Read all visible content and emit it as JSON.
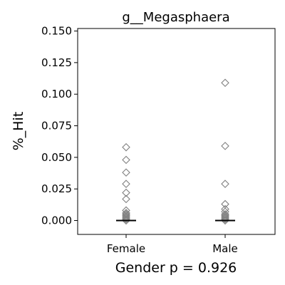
{
  "chart_data": {
    "type": "scatter",
    "title": "g__Megasphaera",
    "xlabel": "Gender p = 0.926",
    "ylabel": "%_Hit",
    "categories": [
      "Female",
      "Male"
    ],
    "ylim": [
      -0.011,
      0.152
    ],
    "yticks": [
      "0.000",
      "0.025",
      "0.050",
      "0.075",
      "0.100",
      "0.125",
      "0.150"
    ],
    "grid": false,
    "marker": "diamond",
    "marker_color": "#808080",
    "median_color": "#000000",
    "series": [
      {
        "category": "Female",
        "values": [
          0.058,
          0.048,
          0.038,
          0.029,
          0.022,
          0.017,
          0.008,
          0.006,
          0.005,
          0.004,
          0.003,
          0.002,
          0.001,
          0.0
        ],
        "median": 0.0
      },
      {
        "category": "Male",
        "values": [
          0.109,
          0.059,
          0.029,
          0.013,
          0.009,
          0.007,
          0.005,
          0.004,
          0.003,
          0.002,
          0.001,
          0.0
        ],
        "median": 0.0
      }
    ]
  }
}
